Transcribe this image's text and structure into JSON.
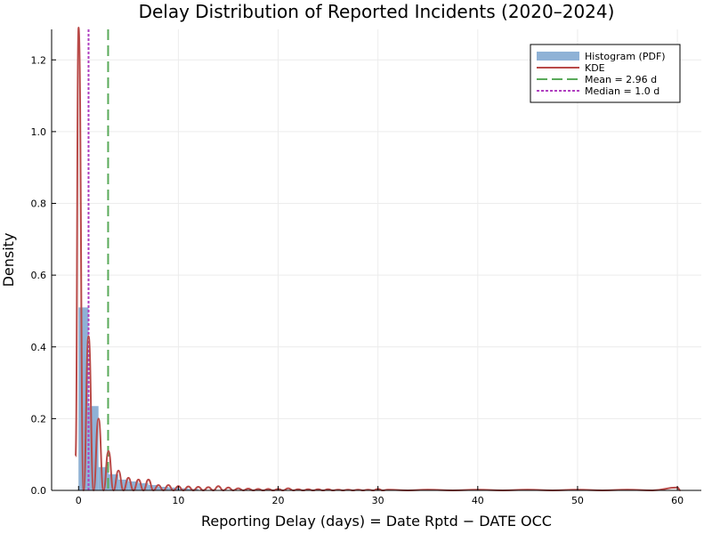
{
  "chart_data": {
    "type": "histogram",
    "title": "Delay Distribution of Reported Incidents (2020–2024)",
    "xlabel": "Reporting Delay (days) = Date Rptd − DATE OCC",
    "ylabel": "Density",
    "xlim": [
      -2.7,
      62.4
    ],
    "ylim": [
      0,
      1.285
    ],
    "xticks": [
      0,
      10,
      20,
      30,
      40,
      50,
      60
    ],
    "yticks": [
      0.0,
      0.2,
      0.4,
      0.6,
      0.8,
      1.0,
      1.2
    ],
    "xtick_labels": [
      "0",
      "10",
      "20",
      "30",
      "40",
      "50",
      "60"
    ],
    "ytick_labels": [
      "0.0",
      "0.2",
      "0.4",
      "0.6",
      "0.8",
      "1.0",
      "1.2"
    ],
    "grid": true,
    "legend_position": "top-right",
    "histogram": {
      "name": "Histogram (PDF)",
      "color": "#8fb2d6",
      "bin_edges": [
        0,
        1,
        2,
        3,
        4,
        5,
        6,
        7,
        8,
        9,
        10,
        11,
        12
      ],
      "values": [
        0.51,
        0.235,
        0.065,
        0.045,
        0.03,
        0.025,
        0.02,
        0.015,
        0.01,
        0.008,
        0.006,
        0.004
      ]
    },
    "kde": {
      "name": "KDE",
      "color": "#b94a48",
      "peaks": [
        {
          "x": 0,
          "y": 1.29
        },
        {
          "x": 1,
          "y": 0.43
        },
        {
          "x": 2,
          "y": 0.2
        },
        {
          "x": 3,
          "y": 0.11
        },
        {
          "x": 4,
          "y": 0.055
        },
        {
          "x": 5,
          "y": 0.035
        },
        {
          "x": 6,
          "y": 0.03
        },
        {
          "x": 7,
          "y": 0.03
        },
        {
          "x": 8,
          "y": 0.015
        },
        {
          "x": 9,
          "y": 0.015
        },
        {
          "x": 10,
          "y": 0.012
        },
        {
          "x": 11,
          "y": 0.011
        },
        {
          "x": 12,
          "y": 0.01
        },
        {
          "x": 13,
          "y": 0.009
        },
        {
          "x": 14,
          "y": 0.012
        },
        {
          "x": 15,
          "y": 0.008
        },
        {
          "x": 16,
          "y": 0.006
        },
        {
          "x": 17,
          "y": 0.005
        },
        {
          "x": 18,
          "y": 0.004
        },
        {
          "x": 19,
          "y": 0.004
        },
        {
          "x": 20,
          "y": 0.004
        },
        {
          "x": 21,
          "y": 0.006
        },
        {
          "x": 22,
          "y": 0.003
        },
        {
          "x": 23,
          "y": 0.003
        },
        {
          "x": 24,
          "y": 0.003
        },
        {
          "x": 25,
          "y": 0.003
        },
        {
          "x": 26,
          "y": 0.002
        },
        {
          "x": 27,
          "y": 0.002
        },
        {
          "x": 28,
          "y": 0.002
        },
        {
          "x": 29,
          "y": 0.002
        },
        {
          "x": 30,
          "y": 0.004
        },
        {
          "x": 31,
          "y": 0.002
        },
        {
          "x": 35,
          "y": 0.002
        },
        {
          "x": 40,
          "y": 0.002
        },
        {
          "x": 45,
          "y": 0.002
        },
        {
          "x": 50,
          "y": 0.002
        },
        {
          "x": 55,
          "y": 0.002
        },
        {
          "x": 60,
          "y": 0.008
        }
      ]
    },
    "mean_line": {
      "name": "Mean = 2.96 d",
      "x": 2.96,
      "color": "#5aaa5a"
    },
    "median_line": {
      "name": "Median = 1.0 d",
      "x": 1.0,
      "color": "#b040c0"
    }
  }
}
